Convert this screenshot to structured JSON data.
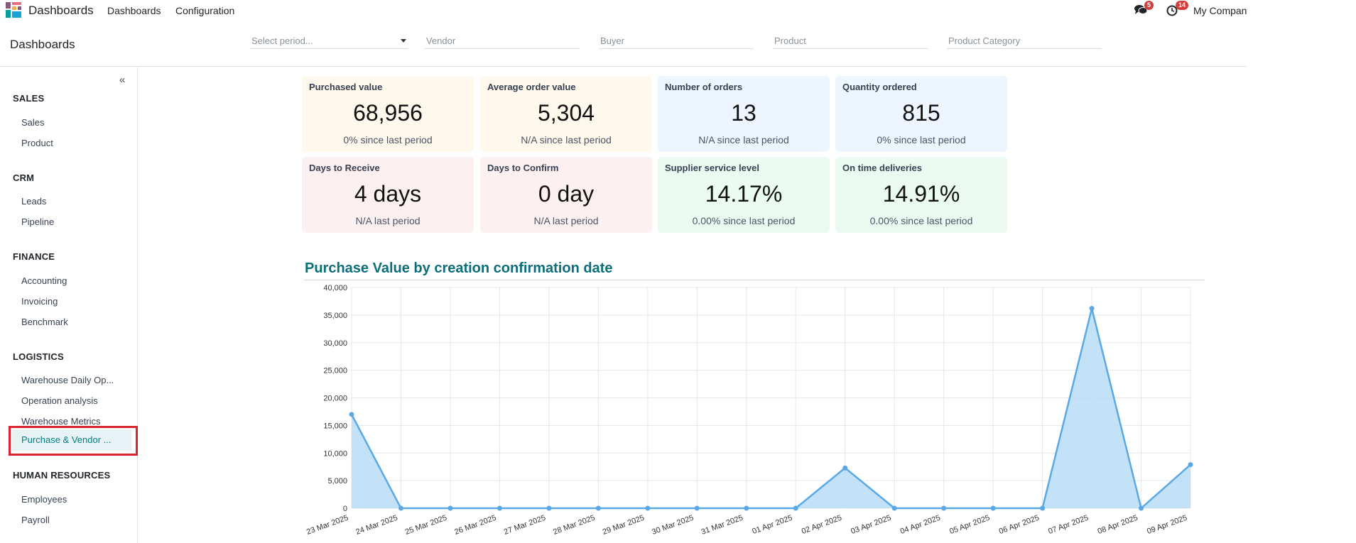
{
  "topbar": {
    "app_title": "Dashboards",
    "nav": [
      "Dashboards",
      "Configuration"
    ],
    "messages_badge": "5",
    "activity_badge": "14",
    "company": "My Company"
  },
  "control_panel": {
    "title": "Dashboards",
    "filters": {
      "period_placeholder": "Select period...",
      "vendor_placeholder": "Vendor",
      "buyer_placeholder": "Buyer",
      "product_placeholder": "Product",
      "category_placeholder": "Product Category"
    }
  },
  "sidebar": {
    "collapse_label": "«",
    "sections": [
      {
        "title": "SALES",
        "items": [
          "Sales",
          "Product"
        ]
      },
      {
        "title": "CRM",
        "items": [
          "Leads",
          "Pipeline"
        ]
      },
      {
        "title": "FINANCE",
        "items": [
          "Accounting",
          "Invoicing",
          "Benchmark"
        ]
      },
      {
        "title": "LOGISTICS",
        "items": [
          "Warehouse Daily Op...",
          "Operation analysis",
          "Warehouse Metrics",
          "Purchase & Vendor ..."
        ]
      },
      {
        "title": "HUMAN RESOURCES",
        "items": [
          "Employees",
          "Payroll"
        ]
      }
    ],
    "active_item": "Purchase & Vendor ..."
  },
  "kpis": [
    {
      "title": "Purchased value",
      "value": "68,956",
      "sub": "0% since last period"
    },
    {
      "title": "Average order value",
      "value": "5,304",
      "sub": "N/A since last period"
    },
    {
      "title": "Number of orders",
      "value": "13",
      "sub": "N/A since last period"
    },
    {
      "title": "Quantity ordered",
      "value": "815",
      "sub": "0% since last period"
    },
    {
      "title": "Days to Receive",
      "value": "4 days",
      "sub": "N/A last period"
    },
    {
      "title": "Days to Confirm",
      "value": "0 day",
      "sub": "N/A last period"
    },
    {
      "title": "Supplier service level",
      "value": "14.17%",
      "sub": "0.00% since last period"
    },
    {
      "title": "On time deliveries",
      "value": "14.91%",
      "sub": "0.00% since last period"
    }
  ],
  "colors": {
    "accent": "#017e84",
    "chart_line": "#5aa9e6",
    "chart_fill": "#b9dcf6",
    "highlight": "#d7262e"
  },
  "chart_data": {
    "type": "area",
    "title": "Purchase Value by creation confirmation date",
    "categories": [
      "23 Mar 2025",
      "24 Mar 2025",
      "25 Mar 2025",
      "26 Mar 2025",
      "27 Mar 2025",
      "28 Mar 2025",
      "29 Mar 2025",
      "30 Mar 2025",
      "31 Mar 2025",
      "01 Apr 2025",
      "02 Apr 2025",
      "03 Apr 2025",
      "04 Apr 2025",
      "05 Apr 2025",
      "06 Apr 2025",
      "07 Apr 2025",
      "08 Apr 2025",
      "09 Apr 2025"
    ],
    "values": [
      17000,
      0,
      0,
      0,
      0,
      0,
      0,
      0,
      0,
      0,
      7300,
      0,
      0,
      0,
      0,
      36200,
      0,
      7900
    ],
    "ylim": [
      0,
      40000
    ],
    "yticks": [
      "0",
      "5,000",
      "10,000",
      "15,000",
      "20,000",
      "25,000",
      "30,000",
      "35,000",
      "40,000"
    ],
    "grid": true,
    "xlabel": "",
    "ylabel": ""
  }
}
